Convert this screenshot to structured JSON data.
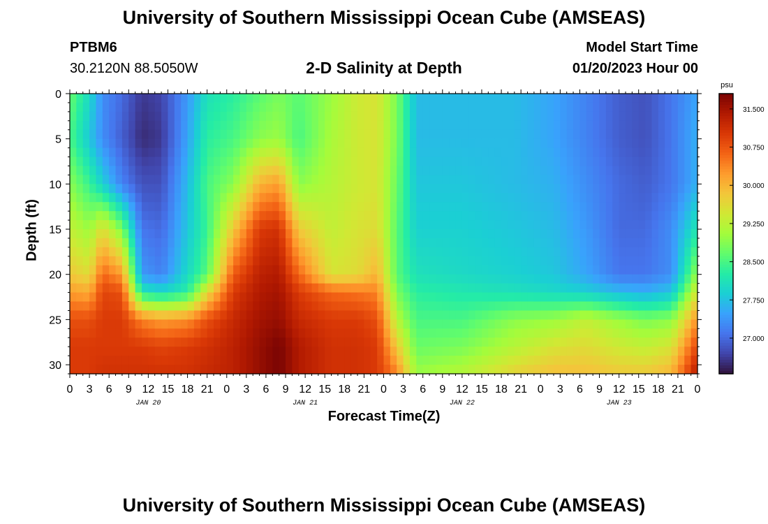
{
  "header": {
    "title": "University of Southern Mississippi Ocean Cube (AMSEAS)",
    "station_id": "PTBM6",
    "coords": "30.2120N  88.5050W",
    "plot_title": "2-D Salinity at Depth",
    "model_start_label": "Model Start Time",
    "model_start_value": "01/20/2023 Hour 00"
  },
  "footer": {
    "title": "University of Southern Mississippi Ocean Cube (AMSEAS)"
  },
  "chart_data": {
    "type": "heatmap",
    "title": "2-D Salinity at Depth",
    "xlabel": "Forecast Time(Z)",
    "ylabel": "Depth (ft)",
    "x_unit": "hours since 01/20/2023 00Z",
    "xlim": [
      0,
      96
    ],
    "ylim": [
      0,
      31
    ],
    "y_ticks": [
      0,
      5,
      10,
      15,
      20,
      25,
      30
    ],
    "x_tick_step_hours": 3,
    "x_tick_labels": [
      "0",
      "3",
      "6",
      "9",
      "12",
      "15",
      "18",
      "21",
      "0",
      "3",
      "6",
      "9",
      "12",
      "15",
      "18",
      "21",
      "0",
      "3",
      "6",
      "9",
      "12",
      "15",
      "18",
      "21",
      "0",
      "3",
      "6",
      "9",
      "12",
      "15",
      "18",
      "21",
      "0"
    ],
    "date_labels": [
      {
        "hour": 12,
        "label": "JAN 20"
      },
      {
        "hour": 36,
        "label": "JAN 21"
      },
      {
        "hour": 60,
        "label": "JAN 22"
      },
      {
        "hour": 84,
        "label": "JAN 23"
      }
    ],
    "colorbar": {
      "unit": "psu",
      "min": 26.3,
      "max": 31.8,
      "ticks": [
        "31.500",
        "30.750",
        "30.000",
        "29.250",
        "28.500",
        "27.750",
        "27.000"
      ],
      "colormap": [
        "#30123b",
        "#4145ab",
        "#4675ed",
        "#39a2fc",
        "#1bcfd4",
        "#24eca6",
        "#61fc6c",
        "#a4fc3b",
        "#d1e834",
        "#f3c63a",
        "#fe9b2d",
        "#f36315",
        "#d93806",
        "#b11901",
        "#7a0403"
      ]
    },
    "salinity_profiles": {
      "depth_ft": [
        0,
        5,
        10,
        15,
        20,
        22,
        25,
        28,
        31
      ],
      "samples": [
        {
          "hour": 0,
          "values": [
            28.7,
            28.5,
            28.9,
            29.3,
            29.8,
            30.2,
            30.8,
            31.0,
            31.0
          ]
        },
        {
          "hour": 3,
          "values": [
            28.0,
            27.8,
            28.4,
            29.0,
            29.6,
            30.1,
            30.8,
            31.0,
            31.0
          ]
        },
        {
          "hour": 5,
          "values": [
            27.3,
            27.3,
            27.9,
            29.6,
            30.6,
            30.9,
            31.0,
            31.0,
            31.1
          ]
        },
        {
          "hour": 8,
          "values": [
            27.0,
            26.9,
            27.2,
            28.8,
            30.2,
            30.8,
            31.0,
            31.0,
            31.1
          ]
        },
        {
          "hour": 11,
          "values": [
            26.6,
            26.5,
            26.8,
            27.1,
            27.4,
            28.2,
            30.4,
            31.0,
            31.1
          ]
        },
        {
          "hour": 14,
          "values": [
            26.7,
            26.6,
            26.8,
            27.0,
            27.2,
            28.0,
            30.2,
            30.9,
            31.1
          ]
        },
        {
          "hour": 18,
          "values": [
            27.4,
            27.5,
            27.7,
            27.8,
            28.0,
            28.3,
            30.3,
            31.0,
            31.1
          ]
        },
        {
          "hour": 21,
          "values": [
            28.1,
            28.3,
            28.5,
            28.4,
            28.6,
            29.6,
            30.8,
            31.1,
            31.2
          ]
        },
        {
          "hour": 25,
          "values": [
            28.3,
            28.5,
            28.9,
            29.8,
            30.7,
            31.0,
            31.2,
            31.3,
            31.3
          ]
        },
        {
          "hour": 29,
          "values": [
            28.6,
            28.9,
            30.0,
            31.0,
            31.3,
            31.4,
            31.5,
            31.6,
            31.6
          ]
        },
        {
          "hour": 32,
          "values": [
            28.8,
            29.0,
            30.2,
            31.1,
            31.4,
            31.5,
            31.6,
            31.8,
            31.8
          ]
        },
        {
          "hour": 35,
          "values": [
            28.6,
            28.5,
            28.9,
            29.8,
            30.6,
            31.0,
            31.2,
            31.4,
            31.4
          ]
        },
        {
          "hour": 40,
          "values": [
            29.0,
            29.1,
            29.2,
            29.3,
            29.5,
            30.6,
            31.0,
            31.1,
            31.1
          ]
        },
        {
          "hour": 44,
          "values": [
            29.4,
            29.4,
            29.4,
            29.5,
            29.6,
            30.5,
            31.0,
            31.1,
            31.1
          ]
        },
        {
          "hour": 47,
          "values": [
            29.5,
            29.5,
            29.5,
            29.6,
            30.0,
            30.4,
            30.8,
            31.0,
            31.0
          ]
        },
        {
          "hour": 50,
          "values": [
            28.8,
            28.8,
            28.7,
            28.6,
            28.6,
            28.8,
            29.2,
            29.8,
            30.4
          ]
        },
        {
          "hour": 53,
          "values": [
            27.7,
            27.7,
            27.8,
            27.9,
            28.1,
            28.3,
            28.5,
            28.7,
            29.0
          ]
        },
        {
          "hour": 60,
          "values": [
            27.7,
            27.7,
            27.8,
            27.9,
            28.0,
            28.2,
            28.5,
            28.8,
            29.2
          ]
        },
        {
          "hour": 68,
          "values": [
            27.7,
            27.7,
            27.7,
            27.8,
            27.9,
            28.1,
            28.9,
            29.2,
            29.7
          ]
        },
        {
          "hour": 74,
          "values": [
            27.5,
            27.5,
            27.6,
            27.7,
            27.8,
            28.0,
            29.0,
            29.5,
            29.9
          ]
        },
        {
          "hour": 79,
          "values": [
            27.2,
            27.2,
            27.3,
            27.4,
            27.5,
            27.9,
            29.3,
            29.6,
            29.9
          ]
        },
        {
          "hour": 84,
          "values": [
            26.9,
            26.9,
            27.0,
            27.0,
            27.1,
            27.7,
            29.0,
            29.4,
            29.8
          ]
        },
        {
          "hour": 88,
          "values": [
            26.8,
            26.8,
            26.9,
            27.0,
            27.1,
            27.6,
            28.8,
            29.3,
            29.8
          ]
        },
        {
          "hour": 92,
          "values": [
            27.1,
            27.1,
            27.1,
            27.3,
            27.3,
            27.8,
            28.9,
            29.5,
            30.0
          ]
        },
        {
          "hour": 96,
          "values": [
            27.5,
            27.6,
            27.6,
            28.2,
            29.0,
            29.5,
            30.3,
            30.9,
            31.4
          ]
        }
      ]
    }
  }
}
